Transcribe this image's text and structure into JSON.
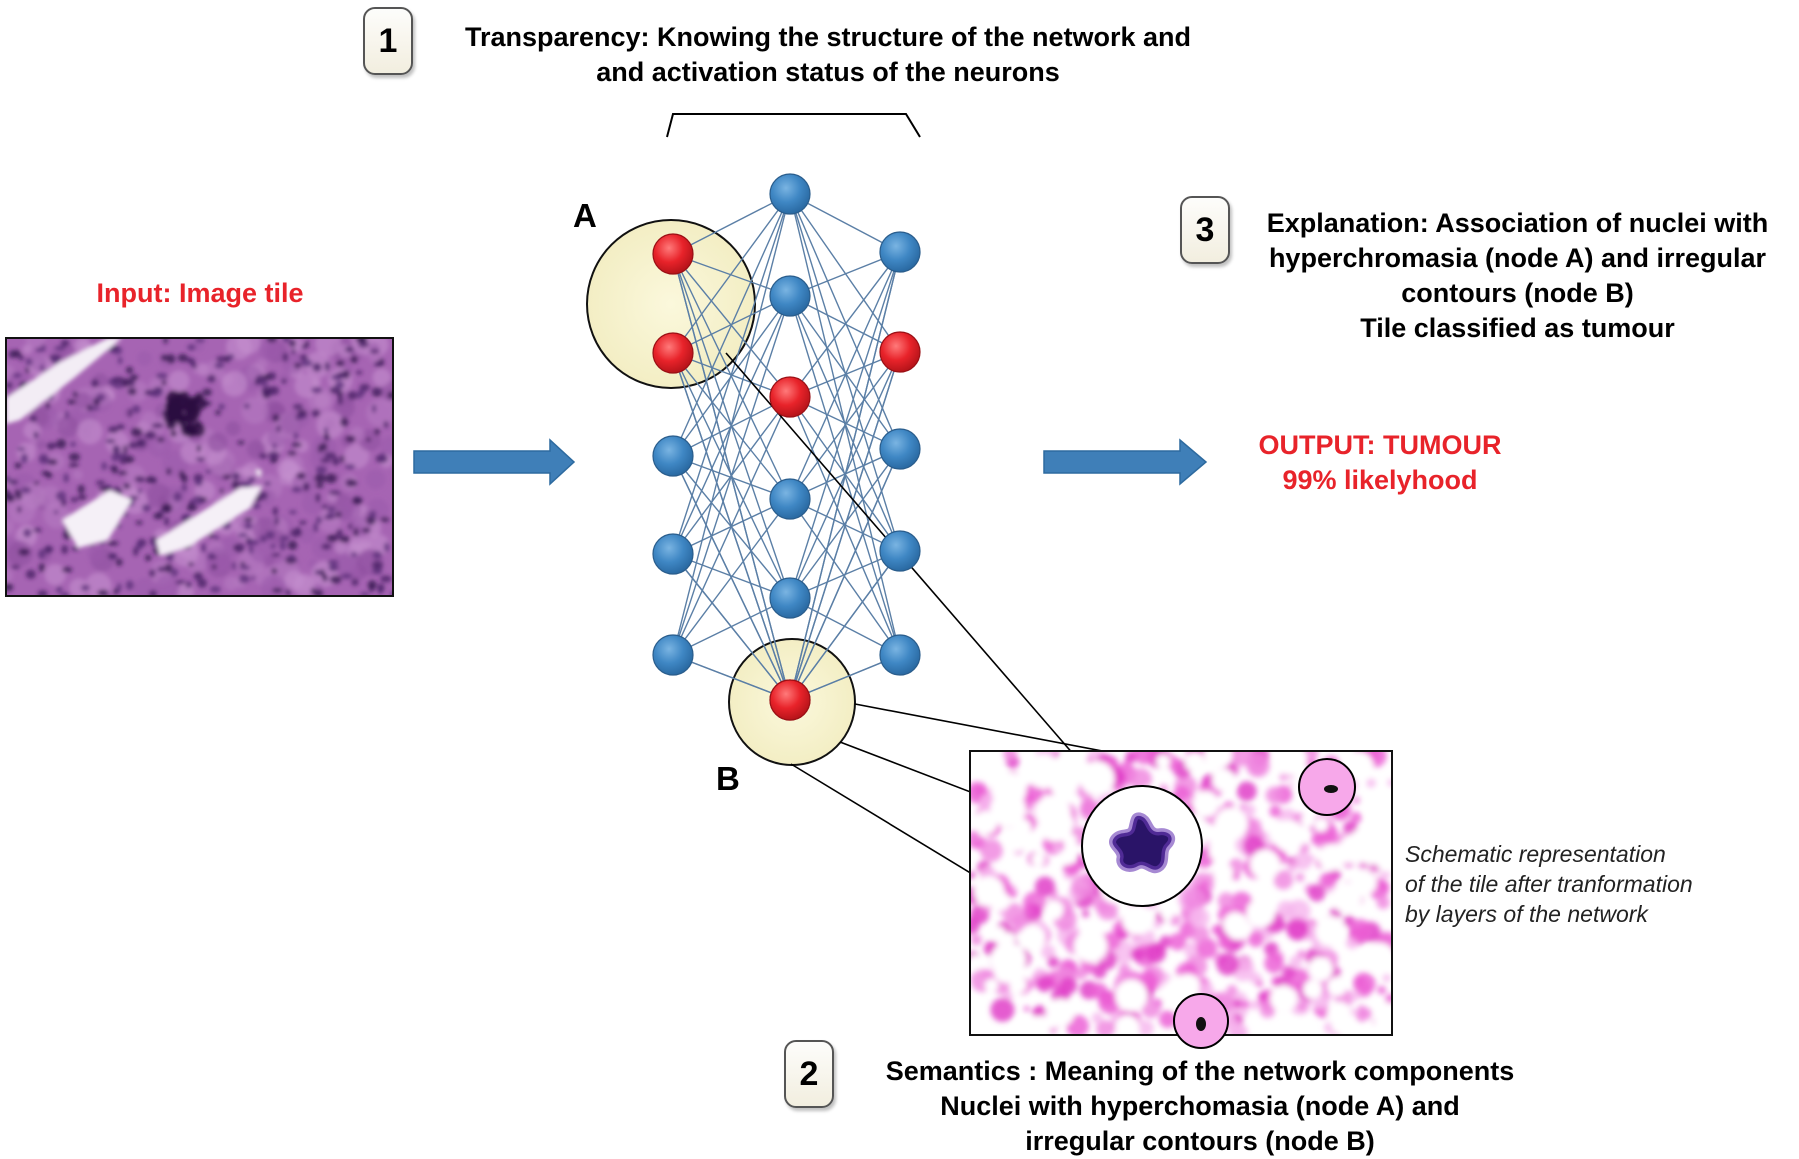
{
  "steps": {
    "transparency": {
      "number": "1",
      "lines": [
        "Transparency: Knowing the structure of the network and",
        "and activation status of the neurons"
      ]
    },
    "semantics": {
      "number": "2",
      "lines": [
        "Semantics : Meaning of the network components",
        "Nuclei with hyperchomasia (node A) and",
        "irregular contours (node B)"
      ]
    },
    "explanation": {
      "number": "3",
      "lines": [
        "Explanation: Association of nuclei with",
        "hyperchromasia (node A) and irregular",
        "contours (node B)",
        "Tile classified as tumour"
      ]
    }
  },
  "input": {
    "label": "Input: Image tile"
  },
  "output": {
    "lines": [
      "OUTPUT: TUMOUR",
      "99% likelyhood"
    ]
  },
  "nodes": {
    "a_label": "A",
    "b_label": "B"
  },
  "schematic": {
    "caption_lines": [
      "Schematic representation",
      "of the tile after tranformation",
      "by layers of the network"
    ]
  },
  "network": {
    "layers": [
      [
        "active",
        "active",
        "inactive",
        "inactive",
        "inactive"
      ],
      [
        "inactive",
        "inactive",
        "active",
        "inactive",
        "inactive",
        "active",
        "active"
      ],
      [
        "inactive",
        "active",
        "inactive",
        "inactive",
        "inactive"
      ]
    ]
  },
  "colors": {
    "active_node": "#e8232a",
    "inactive_node": "#3f87c4",
    "arrow": "#3f7fb8",
    "highlight": "#f6f2cc",
    "tissue_purple": "#9a5aa8",
    "schematic_pink": "#e040c8"
  }
}
